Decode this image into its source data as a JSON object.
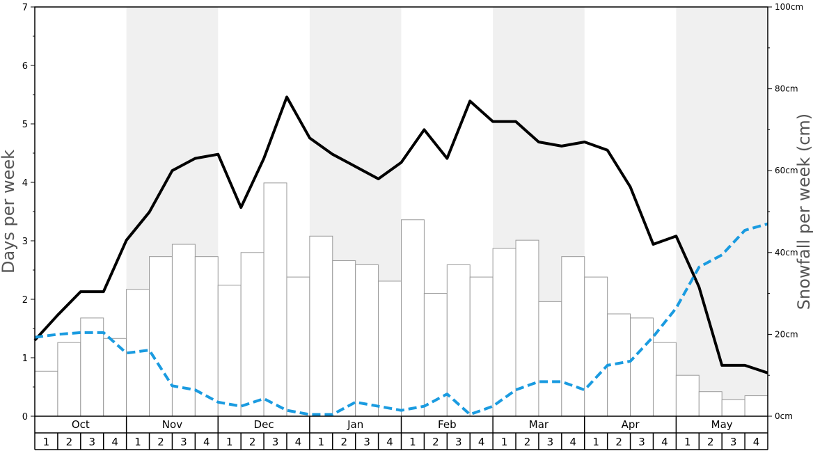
{
  "chart_data": {
    "type": "bar",
    "left_axis": {
      "label": "Days per week",
      "ylim": [
        0,
        7
      ],
      "ticks": [
        0,
        1,
        2,
        3,
        4,
        5,
        6,
        7
      ]
    },
    "right_axis": {
      "label": "Snowfall per week (cm)",
      "ylim": [
        0,
        100
      ],
      "ticks": [
        "0cm",
        "20cm",
        "40cm",
        "60cm",
        "80cm",
        "100cm"
      ]
    },
    "months": [
      "Oct",
      "Nov",
      "Dec",
      "Jan",
      "Feb",
      "Mar",
      "Apr",
      "May"
    ],
    "week_labels": [
      "1",
      "2",
      "3",
      "4"
    ],
    "shaded_months": [
      "Nov",
      "Jan",
      "Mar",
      "May"
    ],
    "colors": {
      "solid_line": "#000000",
      "dashed_line": "#1a9be0",
      "bar_edge": "#999999",
      "shade": "#f0f0f0"
    },
    "series": [
      {
        "type": "bar",
        "axis": "right",
        "values": [
          11,
          18,
          24,
          19,
          31,
          39,
          42,
          39,
          32,
          40,
          57,
          34,
          44,
          38,
          37,
          33,
          48,
          30,
          37,
          34,
          41,
          43,
          28,
          39,
          34,
          25,
          24,
          18,
          10,
          6,
          4,
          5
        ]
      },
      {
        "type": "line",
        "axis": "left",
        "style": "solid",
        "values": [
          1.3,
          1.73,
          2.13,
          2.13,
          3.01,
          3.49,
          4.2,
          4.41,
          4.48,
          3.57,
          4.41,
          5.46,
          4.76,
          4.48,
          4.27,
          4.06,
          4.34,
          4.9,
          4.41,
          5.39,
          5.04,
          5.04,
          4.69,
          4.62,
          4.69,
          4.55,
          3.92,
          2.94,
          3.08,
          2.21,
          0.87,
          0.87,
          0.74
        ]
      },
      {
        "type": "line",
        "axis": "left",
        "style": "dashed",
        "values": [
          1.35,
          1.4,
          1.43,
          1.43,
          1.08,
          1.13,
          0.52,
          0.45,
          0.24,
          0.17,
          0.3,
          0.1,
          0.03,
          0.03,
          0.24,
          0.17,
          0.1,
          0.17,
          0.38,
          0.03,
          0.17,
          0.45,
          0.59,
          0.59,
          0.45,
          0.87,
          0.94,
          1.36,
          1.85,
          2.55,
          2.76,
          3.18,
          3.29
        ]
      }
    ]
  }
}
